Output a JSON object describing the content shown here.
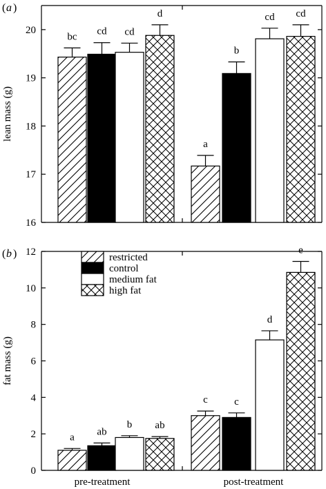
{
  "chart_data": [
    {
      "panel": "a",
      "type": "bar",
      "ylabel": "lean mass (g)",
      "ylim": [
        16,
        20.5
      ],
      "yticks": [
        16,
        17,
        18,
        19,
        20
      ],
      "groups": [
        "pre-treatment",
        "post-treatment"
      ],
      "series": [
        {
          "name": "restricted",
          "pattern": "hatch",
          "values": [
            19.43,
            17.17
          ],
          "errors": [
            0.19,
            0.22
          ],
          "letters": [
            "bc",
            "a"
          ]
        },
        {
          "name": "control",
          "pattern": "solid",
          "values": [
            19.49,
            19.09
          ],
          "errors": [
            0.24,
            0.24
          ],
          "letters": [
            "cd",
            "b"
          ]
        },
        {
          "name": "medium fat",
          "pattern": "open",
          "values": [
            19.53,
            19.81
          ],
          "errors": [
            0.19,
            0.22
          ],
          "letters": [
            "cd",
            "cd"
          ]
        },
        {
          "name": "high fat",
          "pattern": "crosshatch",
          "values": [
            19.88,
            19.86
          ],
          "errors": [
            0.22,
            0.24
          ],
          "letters": [
            "d",
            "cd"
          ]
        }
      ]
    },
    {
      "panel": "b",
      "type": "bar",
      "ylabel": "fat mass (g)",
      "ylim": [
        0,
        12
      ],
      "yticks": [
        0,
        2,
        4,
        6,
        8,
        10,
        12
      ],
      "groups": [
        "pre-treatment",
        "post-treatment"
      ],
      "legend": [
        "restricted",
        "control",
        "medium fat",
        "high fat"
      ],
      "series": [
        {
          "name": "restricted",
          "pattern": "hatch",
          "values": [
            1.1,
            3.0
          ],
          "errors": [
            0.1,
            0.25
          ],
          "letters": [
            "a",
            "c"
          ]
        },
        {
          "name": "control",
          "pattern": "solid",
          "values": [
            1.35,
            2.9
          ],
          "errors": [
            0.15,
            0.25
          ],
          "letters": [
            "ab",
            "c"
          ]
        },
        {
          "name": "medium fat",
          "pattern": "open",
          "values": [
            1.8,
            7.15
          ],
          "errors": [
            0.1,
            0.5
          ],
          "letters": [
            "b",
            "d"
          ]
        },
        {
          "name": "high fat",
          "pattern": "crosshatch",
          "values": [
            1.75,
            10.85
          ],
          "errors": [
            0.1,
            0.6
          ],
          "letters": [
            "ab",
            "e"
          ]
        }
      ]
    }
  ],
  "panel_labels": {
    "a": "a",
    "b": "b"
  }
}
